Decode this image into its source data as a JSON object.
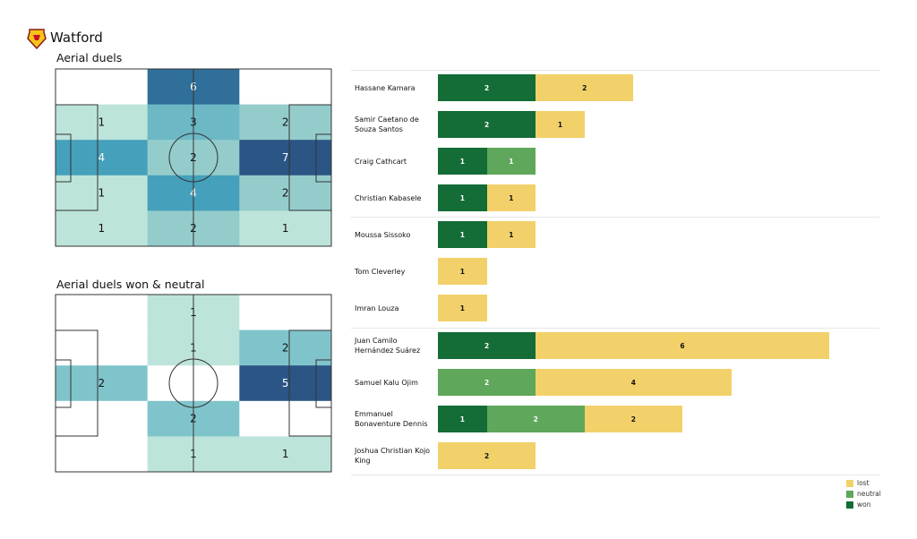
{
  "team": "Watford",
  "colors": {
    "won": "#146c36",
    "neutral": "#5fa75a",
    "lost": "#f2d16b",
    "heat": [
      "#ffffff",
      "#bce4da",
      "#94cccc",
      "#6db8c5",
      "#45a0bb",
      "#3a86ad",
      "#2f6f9a",
      "#2a5585"
    ],
    "heat2": [
      "#ffffff",
      "#bce4da",
      "#80c4cb",
      "#5fa8bf",
      "#3f86ae",
      "#2b5585"
    ]
  },
  "chart_data": [
    {
      "type": "heatmap",
      "title": "Aerial duels",
      "grid": [
        [
          null,
          6,
          null
        ],
        [
          1,
          3,
          2
        ],
        [
          4,
          2,
          7
        ],
        [
          1,
          4,
          2
        ],
        [
          1,
          2,
          1
        ]
      ]
    },
    {
      "type": "heatmap",
      "title": "Aerial duels won & neutral",
      "grid": [
        [
          null,
          1,
          null
        ],
        [
          null,
          1,
          2
        ],
        [
          2,
          null,
          5
        ],
        [
          null,
          2,
          null
        ],
        [
          null,
          1,
          1
        ]
      ]
    },
    {
      "type": "bar",
      "stacked": true,
      "legend": [
        "lost",
        "neutral",
        "won"
      ],
      "legend_position": "bottom-right",
      "players": [
        {
          "name": "Hassane Kamara",
          "won": 2,
          "neutral": 0,
          "lost": 2
        },
        {
          "name": "Samir Caetano de Souza Santos",
          "won": 2,
          "neutral": 0,
          "lost": 1
        },
        {
          "name": "Craig Cathcart",
          "won": 1,
          "neutral": 1,
          "lost": 0
        },
        {
          "name": "Christian Kabasele",
          "won": 1,
          "neutral": 0,
          "lost": 1
        },
        {
          "name": "Moussa Sissoko",
          "won": 1,
          "neutral": 0,
          "lost": 1
        },
        {
          "name": "Tom Cleverley",
          "won": 0,
          "neutral": 0,
          "lost": 1
        },
        {
          "name": "Imran Louza",
          "won": 0,
          "neutral": 0,
          "lost": 1
        },
        {
          "name": "Juan Camilo Hernández Suárez",
          "won": 2,
          "neutral": 0,
          "lost": 6
        },
        {
          "name": "Samuel Kalu Ojim",
          "won": 0,
          "neutral": 2,
          "lost": 4
        },
        {
          "name": "Emmanuel Bonaventure Dennis",
          "won": 1,
          "neutral": 2,
          "lost": 2
        },
        {
          "name": "Joshua Christian Kojo King",
          "won": 0,
          "neutral": 0,
          "lost": 2
        }
      ]
    }
  ]
}
